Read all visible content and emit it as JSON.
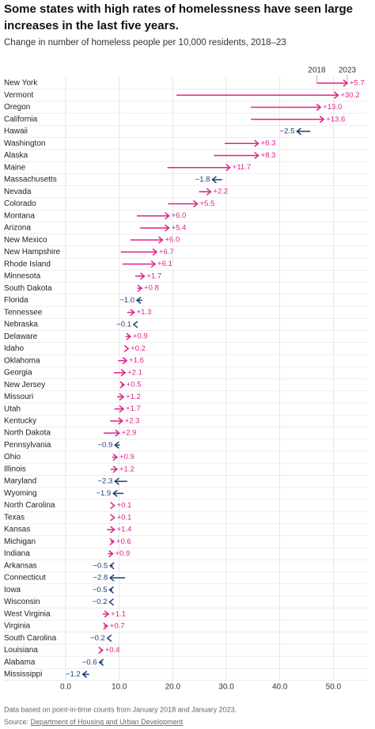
{
  "chart_data": {
    "type": "arrow",
    "title": "Some states with high rates of homelessness have seen large increases in the last five years.",
    "title_lines": [
      "Some states with high rates of homelessness have seen large",
      "increases in the last five years."
    ],
    "subtitle": "Change in number of homeless people per 10,000 residents, 2018–23",
    "categories": [
      "New York",
      "Vermont",
      "Oregon",
      "California",
      "Hawaii",
      "Washington",
      "Alaska",
      "Maine",
      "Massachusetts",
      "Nevada",
      "Colorado",
      "Montana",
      "Arizona",
      "New Mexico",
      "New Hampshire",
      "Rhode Island",
      "Minnesota",
      "South Dakota",
      "Florida",
      "Tennessee",
      "Nebraska",
      "Delaware",
      "Idaho",
      "Oklahoma",
      "Georgia",
      "New Jersey",
      "Missouri",
      "Utah",
      "Kentucky",
      "North Dakota",
      "Pennsylvania",
      "Ohio",
      "Illinois",
      "Maryland",
      "Wyoming",
      "North Carolina",
      "Texas",
      "Kansas",
      "Michigan",
      "Indiana",
      "Arkansas",
      "Connecticut",
      "Iowa",
      "Wisconsin",
      "West Virginia",
      "Virginia",
      "South Carolina",
      "Louisiana",
      "Alabama",
      "Mississippi"
    ],
    "series": [
      {
        "name": "2018",
        "values": [
          46.9,
          20.7,
          34.6,
          34.6,
          45.7,
          29.7,
          27.7,
          19.0,
          29.2,
          24.9,
          19.1,
          13.3,
          13.9,
          12.1,
          10.3,
          10.6,
          13.0,
          13.4,
          14.3,
          11.5,
          12.8,
          11.2,
          11.5,
          9.8,
          9.0,
          10.4,
          9.6,
          9.1,
          8.3,
          7.1,
          10.1,
          8.7,
          8.4,
          11.5,
          10.8,
          9.0,
          9.0,
          7.7,
          8.4,
          7.9,
          8.8,
          11.1,
          8.7,
          8.4,
          6.9,
          7.1,
          8.0,
          6.5,
          6.9,
          4.4
        ]
      },
      {
        "name": "2023",
        "values": [
          52.6,
          50.9,
          47.6,
          48.2,
          43.2,
          36.0,
          36.0,
          30.7,
          27.4,
          27.1,
          24.6,
          19.3,
          19.3,
          18.1,
          17.0,
          16.7,
          14.7,
          14.2,
          13.3,
          12.8,
          12.7,
          12.1,
          11.7,
          11.4,
          11.1,
          10.9,
          10.8,
          10.8,
          10.6,
          10.0,
          9.2,
          9.6,
          9.6,
          9.2,
          8.9,
          9.1,
          9.1,
          9.1,
          9.0,
          8.8,
          8.3,
          8.3,
          8.2,
          8.2,
          8.0,
          7.8,
          7.8,
          6.9,
          6.3,
          3.2
        ]
      }
    ],
    "change": {
      "values": [
        5.7,
        30.2,
        13.0,
        13.6,
        -2.5,
        6.3,
        8.3,
        11.7,
        -1.8,
        2.2,
        5.5,
        6.0,
        5.4,
        6.0,
        6.7,
        6.1,
        1.7,
        0.8,
        -1.0,
        1.3,
        -0.1,
        0.9,
        0.2,
        1.6,
        2.1,
        0.5,
        1.2,
        1.7,
        2.3,
        2.9,
        -0.9,
        0.9,
        1.2,
        -2.3,
        -1.9,
        0.1,
        0.1,
        1.4,
        0.6,
        0.9,
        -0.5,
        -2.8,
        -0.5,
        -0.2,
        1.1,
        0.7,
        -0.2,
        0.4,
        -0.6,
        -1.2
      ],
      "value_labels": [
        "+5.7",
        "+30.2",
        "+13.0",
        "+13.6",
        "−2.5",
        "+6.3",
        "+8.3",
        "+11.7",
        "−1.8",
        "+2.2",
        "+5.5",
        "+6.0",
        "+5.4",
        "+6.0",
        "+6.7",
        "+6.1",
        "+1.7",
        "+0.8",
        "−1.0",
        "+1.3",
        "−0.1",
        "+0.9",
        "+0.2",
        "+1.6",
        "+2.1",
        "+0.5",
        "+1.2",
        "+1.7",
        "+2.3",
        "+2.9",
        "−0.9",
        "+0.9",
        "+1.2",
        "−2.3",
        "−1.9",
        "+0.1",
        "+0.1",
        "+1.4",
        "+0.6",
        "+0.9",
        "−0.5",
        "−2.8",
        "−0.5",
        "−0.2",
        "+1.1",
        "+0.7",
        "−0.2",
        "+0.4",
        "−0.6",
        "−1.2"
      ]
    },
    "increase_color": "#e0218a",
    "decrease_color": "#1c3f78",
    "xlim": [
      0,
      56
    ],
    "xticks": [
      {
        "value": 0,
        "label": "0.0"
      },
      {
        "value": 10,
        "label": "10.0"
      },
      {
        "value": 20,
        "label": "20.0"
      },
      {
        "value": 30,
        "label": "30.0"
      },
      {
        "value": 40,
        "label": "40.0"
      },
      {
        "value": 50,
        "label": "50.0"
      }
    ],
    "grid": true,
    "note": "Data based on point-in-time counts from January 2018 and January 2023.",
    "source_label": "Source:",
    "source": "Department of Housing and Urban Development"
  }
}
